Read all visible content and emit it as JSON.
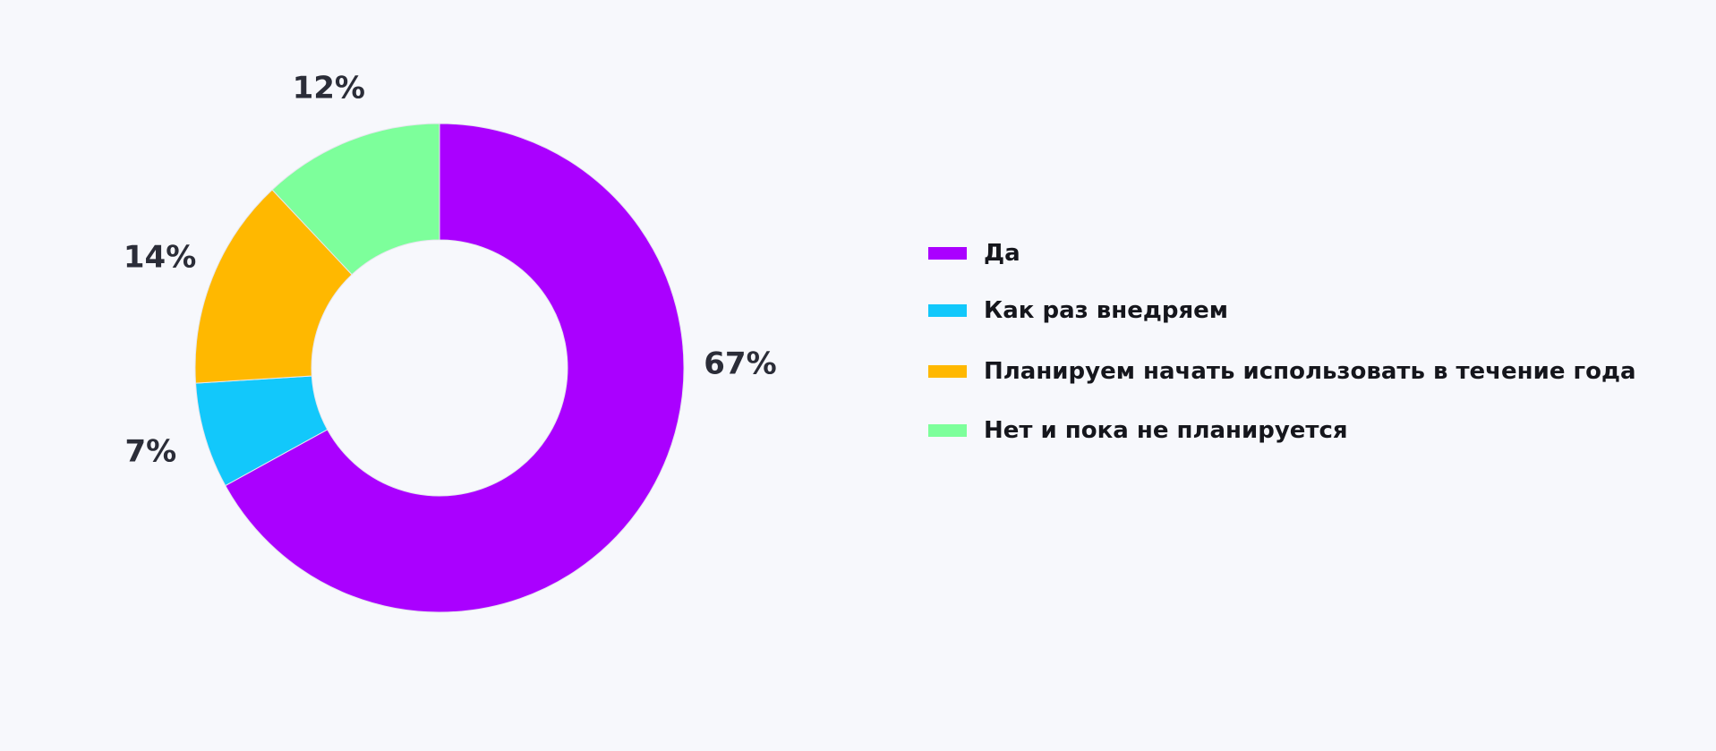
{
  "chart_data": {
    "type": "pie",
    "variant": "donut",
    "categories": [
      "Да",
      "Как раз внедряем",
      "Планируем начать использовать в течение года",
      "Нет и пока не планируется"
    ],
    "values": [
      67,
      7,
      14,
      12
    ],
    "value_labels": [
      "67%",
      "7%",
      "14%",
      "12%"
    ],
    "colors": [
      "#aa00ff",
      "#12c8fb",
      "#ffb800",
      "#7dff9b"
    ],
    "title": "",
    "legend_position": "right"
  }
}
